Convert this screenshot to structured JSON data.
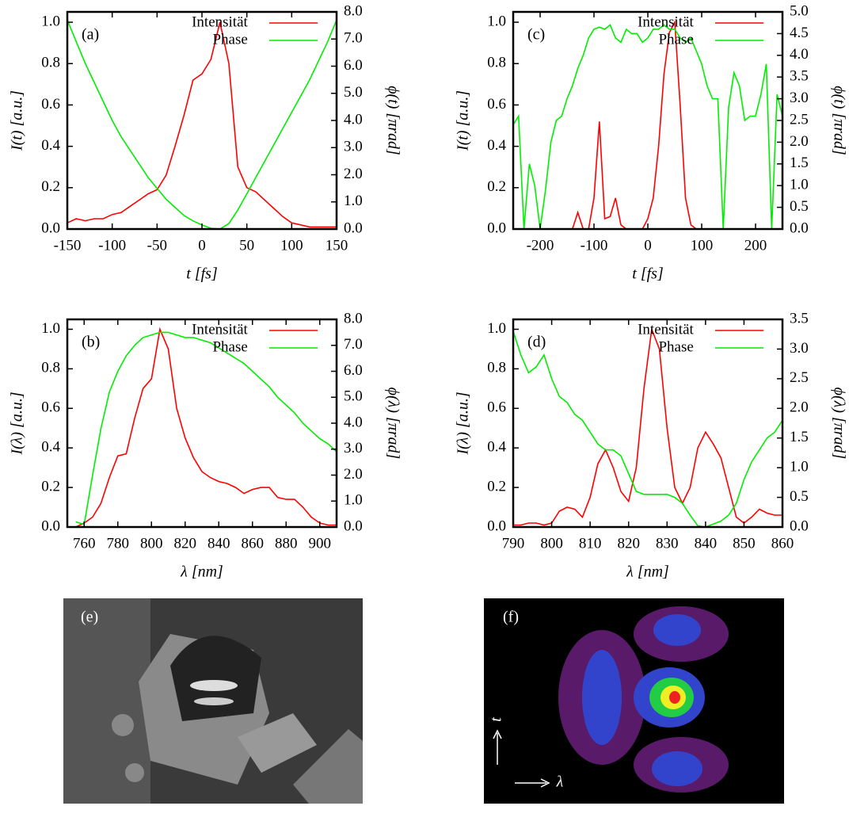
{
  "chart_data": [
    {
      "type": "line",
      "panel_label": "(a)",
      "legend": "upper right",
      "x": [
        -150,
        -140,
        -130,
        -120,
        -110,
        -100,
        -90,
        -80,
        -70,
        -60,
        -50,
        -40,
        -30,
        -20,
        -10,
        0,
        10,
        20,
        30,
        40,
        50,
        60,
        70,
        80,
        90,
        100,
        110,
        120,
        130,
        140,
        150
      ],
      "xlim": [
        -150,
        150
      ],
      "xticks": [
        -150,
        -100,
        -50,
        0,
        50,
        100,
        150
      ],
      "ylim": [
        0,
        1.05
      ],
      "yticks": [
        {
          "value": 0,
          "label": "0.0"
        },
        0.2,
        0.4,
        0.6,
        0.8,
        {
          "value": 1,
          "label": "1.0"
        }
      ],
      "y2lim": [
        0,
        8
      ],
      "y2ticks": [
        {
          "value": 0,
          "label": "0.0"
        },
        {
          "value": 1,
          "label": "1.0"
        },
        {
          "value": 2,
          "label": "2.0"
        },
        {
          "value": 3,
          "label": "3.0"
        },
        {
          "value": 4,
          "label": "4.0"
        },
        {
          "value": 5,
          "label": "5.0"
        },
        {
          "value": 6,
          "label": "6.0"
        },
        {
          "value": 7,
          "label": "7.0"
        },
        {
          "value": 8,
          "label": "8.0"
        }
      ],
      "xlabel": "t [fs]",
      "ylabel": "I(t) [a.u.]",
      "y2label": "ϕ(t) [πrad]",
      "series": [
        {
          "name": "Intensität",
          "color": "#ff0000",
          "values": [
            0.03,
            0.05,
            0.04,
            0.05,
            0.05,
            0.07,
            0.08,
            0.11,
            0.14,
            0.17,
            0.19,
            0.26,
            0.4,
            0.55,
            0.72,
            0.75,
            0.82,
            1.0,
            0.8,
            0.3,
            0.2,
            0.18,
            0.14,
            0.1,
            0.06,
            0.03,
            0.02,
            0.01,
            0.01,
            0.01,
            0.01
          ]
        },
        {
          "name": "Phase",
          "color": "#00ee00",
          "axis": "y2",
          "values": [
            7.7,
            6.9,
            6.1,
            5.4,
            4.7,
            4.0,
            3.4,
            2.9,
            2.4,
            1.9,
            1.5,
            1.1,
            0.8,
            0.5,
            0.3,
            0.15,
            0.03,
            0.0,
            0.2,
            0.7,
            1.3,
            1.9,
            2.5,
            3.1,
            3.7,
            4.3,
            4.9,
            5.5,
            6.2,
            6.9,
            7.7
          ]
        }
      ]
    },
    {
      "type": "line",
      "panel_label": "(b)",
      "legend": "upper right",
      "x": [
        750,
        755,
        760,
        765,
        770,
        775,
        780,
        785,
        790,
        795,
        800,
        805,
        810,
        815,
        820,
        825,
        830,
        835,
        840,
        845,
        850,
        855,
        860,
        865,
        870,
        875,
        880,
        885,
        890,
        895,
        900,
        905,
        910
      ],
      "xlim": [
        750,
        910
      ],
      "xticks": [
        760,
        780,
        800,
        820,
        840,
        860,
        880,
        900
      ],
      "ylim": [
        0,
        1.05
      ],
      "yticks": [
        {
          "value": 0,
          "label": "0.0"
        },
        0.2,
        0.4,
        0.6,
        0.8,
        {
          "value": 1,
          "label": "1.0"
        }
      ],
      "y2lim": [
        0,
        8
      ],
      "y2ticks": [
        {
          "value": 0,
          "label": "0.0"
        },
        {
          "value": 1,
          "label": "1.0"
        },
        {
          "value": 2,
          "label": "2.0"
        },
        {
          "value": 3,
          "label": "3.0"
        },
        {
          "value": 4,
          "label": "4.0"
        },
        {
          "value": 5,
          "label": "5.0"
        },
        {
          "value": 6,
          "label": "6.0"
        },
        {
          "value": 7,
          "label": "7.0"
        },
        {
          "value": 8,
          "label": "8.0"
        }
      ],
      "xlabel": "λ [nm]",
      "ylabel": "I(λ) [a.u.]",
      "y2label": "ϕ(λ) [πrad]",
      "series": [
        {
          "name": "Intensität",
          "color": "#ff0000",
          "values": [
            0,
            0,
            0.02,
            0.05,
            0.12,
            0.25,
            0.36,
            0.37,
            0.55,
            0.7,
            0.75,
            1.0,
            0.9,
            0.6,
            0.45,
            0.35,
            0.28,
            0.25,
            0.23,
            0.22,
            0.2,
            0.17,
            0.19,
            0.2,
            0.2,
            0.15,
            0.14,
            0.14,
            0.1,
            0.05,
            0.02,
            0.01,
            0.01
          ]
        },
        {
          "name": "Phase",
          "color": "#00ee00",
          "axis": "y2",
          "values": [
            null,
            0.2,
            0.1,
            2.0,
            3.8,
            5.2,
            6.0,
            6.6,
            7.0,
            7.3,
            7.4,
            7.5,
            7.5,
            7.4,
            7.3,
            7.3,
            7.2,
            7.1,
            6.9,
            6.7,
            6.5,
            6.3,
            6.0,
            5.7,
            5.4,
            5.0,
            4.7,
            4.4,
            4.0,
            3.7,
            3.4,
            3.2,
            2.9
          ]
        }
      ]
    },
    {
      "type": "line",
      "panel_label": "(c)",
      "legend": "upper right",
      "x": [
        -250,
        -240,
        -230,
        -220,
        -210,
        -200,
        -190,
        -180,
        -170,
        -160,
        -150,
        -140,
        -130,
        -120,
        -110,
        -100,
        -90,
        -80,
        -70,
        -60,
        -50,
        -40,
        -30,
        -20,
        -10,
        0,
        10,
        20,
        30,
        40,
        50,
        60,
        70,
        80,
        90,
        100,
        110,
        120,
        130,
        140,
        150,
        160,
        170,
        180,
        190,
        200,
        210,
        220,
        230,
        240,
        250
      ],
      "xlim": [
        -250,
        250
      ],
      "xticks": [
        -200,
        -100,
        0,
        100,
        200
      ],
      "ylim": [
        0,
        1.05
      ],
      "yticks": [
        {
          "value": 0,
          "label": "0.0"
        },
        0.2,
        0.4,
        0.6,
        0.8,
        {
          "value": 1,
          "label": "1.0"
        }
      ],
      "y2lim": [
        0,
        5
      ],
      "y2ticks": [
        {
          "value": 0,
          "label": "0.0"
        },
        0.5,
        {
          "value": 1,
          "label": "1.0"
        },
        1.5,
        {
          "value": 2,
          "label": "2.0"
        },
        2.5,
        {
          "value": 3,
          "label": "3.0"
        },
        3.5,
        {
          "value": 4,
          "label": "4.0"
        },
        4.5,
        {
          "value": 5,
          "label": "5.0"
        }
      ],
      "xlabel": "t [fs]",
      "ylabel": "I(t) [a.u.]",
      "y2label": "ϕ(t) [πrad]",
      "series": [
        {
          "name": "Intensität",
          "color": "#ff0000",
          "values": [
            0,
            0,
            0,
            0,
            0,
            0,
            0,
            0,
            0,
            0,
            0,
            0,
            0.08,
            0,
            0,
            0.15,
            0.52,
            0.05,
            0.06,
            0.15,
            0.02,
            0,
            0,
            0,
            0,
            0.05,
            0.15,
            0.4,
            0.75,
            0.95,
            1.0,
            0.6,
            0.15,
            0.02,
            0,
            0,
            0,
            0,
            0,
            0,
            0,
            0,
            0,
            0,
            0,
            0,
            0,
            0,
            0,
            0,
            0
          ]
        },
        {
          "name": "Phase",
          "color": "#00ee00",
          "axis": "y2",
          "values": [
            2.4,
            2.6,
            0,
            1.5,
            1.0,
            0,
            0.9,
            2.0,
            2.5,
            2.6,
            3.0,
            3.3,
            3.7,
            4.0,
            4.4,
            4.6,
            4.65,
            4.6,
            4.7,
            4.4,
            4.3,
            4.6,
            4.5,
            4.5,
            4.3,
            4.4,
            4.6,
            4.6,
            4.7,
            4.6,
            4.6,
            4.4,
            4.3,
            4.4,
            4.1,
            3.8,
            3.3,
            3.0,
            3.0,
            0,
            2.8,
            3.6,
            3.3,
            2.5,
            2.6,
            2.6,
            3.1,
            3.8,
            0,
            3.1,
            2.6
          ]
        }
      ]
    },
    {
      "type": "line",
      "panel_label": "(d)",
      "legend": "upper right",
      "x": [
        790,
        792,
        794,
        796,
        798,
        800,
        802,
        804,
        806,
        808,
        810,
        812,
        814,
        816,
        818,
        820,
        822,
        824,
        826,
        828,
        830,
        832,
        834,
        836,
        838,
        840,
        842,
        844,
        846,
        848,
        850,
        852,
        854,
        856,
        858,
        860
      ],
      "xlim": [
        790,
        860
      ],
      "xticks": [
        790,
        800,
        810,
        820,
        830,
        840,
        850,
        860
      ],
      "ylim": [
        0,
        1.05
      ],
      "yticks": [
        {
          "value": 0,
          "label": "0.0"
        },
        0.2,
        0.4,
        0.6,
        0.8,
        {
          "value": 1,
          "label": "1.0"
        }
      ],
      "y2lim": [
        0,
        3.5
      ],
      "y2ticks": [
        {
          "value": 0,
          "label": "0.0"
        },
        0.5,
        {
          "value": 1,
          "label": "1.0"
        },
        1.5,
        {
          "value": 2,
          "label": "2.0"
        },
        2.5,
        {
          "value": 3,
          "label": "3.0"
        },
        3.5
      ],
      "xlabel": "λ [nm]",
      "ylabel": "I(λ) [a.u.]",
      "y2label": "ϕ(λ) [πrad]",
      "series": [
        {
          "name": "Intensität",
          "color": "#ff0000",
          "values": [
            0.01,
            0.01,
            0.02,
            0.02,
            0.01,
            0.02,
            0.08,
            0.1,
            0.09,
            0.05,
            0.15,
            0.32,
            0.39,
            0.3,
            0.18,
            0.13,
            0.3,
            0.7,
            1.0,
            0.9,
            0.5,
            0.2,
            0.12,
            0.2,
            0.4,
            0.48,
            0.42,
            0.35,
            0.2,
            0.05,
            0.02,
            0.05,
            0.09,
            0.07,
            0.06,
            0.06
          ]
        },
        {
          "name": "Phase",
          "color": "#00ee00",
          "axis": "y2",
          "values": [
            3.3,
            2.9,
            2.6,
            2.7,
            2.9,
            2.5,
            2.2,
            2.1,
            1.9,
            1.8,
            1.6,
            1.4,
            1.3,
            1.3,
            1.2,
            0.9,
            0.6,
            0.55,
            0.55,
            0.55,
            0.55,
            0.5,
            0.4,
            0.2,
            0.02,
            0.0,
            0.05,
            0.1,
            0.2,
            0.4,
            0.8,
            1.1,
            1.3,
            1.5,
            1.6,
            1.8
          ]
        }
      ]
    }
  ],
  "images": [
    {
      "panel_label": "(e)"
    },
    {
      "panel_label": "(f)",
      "axis_t": "t",
      "axis_lambda": "λ"
    }
  ]
}
